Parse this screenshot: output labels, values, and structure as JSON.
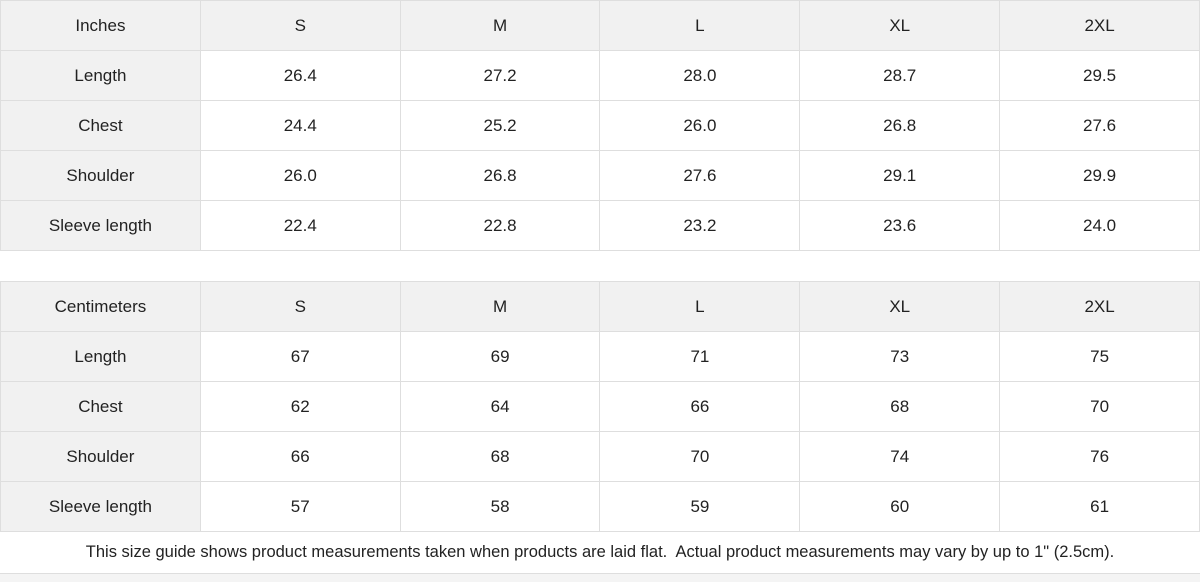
{
  "size_guide": {
    "colors": {
      "header_bg": "#f1f1f1",
      "border": "#dedede",
      "text": "#222222"
    },
    "tables": [
      {
        "unit_label": "Inches",
        "sizes": [
          "S",
          "M",
          "L",
          "XL",
          "2XL"
        ],
        "rows": [
          {
            "label": "Length",
            "values": [
              "26.4",
              "27.2",
              "28.0",
              "28.7",
              "29.5"
            ]
          },
          {
            "label": "Chest",
            "values": [
              "24.4",
              "25.2",
              "26.0",
              "26.8",
              "27.6"
            ]
          },
          {
            "label": "Shoulder",
            "values": [
              "26.0",
              "26.8",
              "27.6",
              "29.1",
              "29.9"
            ]
          },
          {
            "label": "Sleeve length",
            "values": [
              "22.4",
              "22.8",
              "23.2",
              "23.6",
              "24.0"
            ]
          }
        ]
      },
      {
        "unit_label": "Centimeters",
        "sizes": [
          "S",
          "M",
          "L",
          "XL",
          "2XL"
        ],
        "rows": [
          {
            "label": "Length",
            "values": [
              "67",
              "69",
              "71",
              "73",
              "75"
            ]
          },
          {
            "label": "Chest",
            "values": [
              "62",
              "64",
              "66",
              "68",
              "70"
            ]
          },
          {
            "label": "Shoulder",
            "values": [
              "66",
              "68",
              "70",
              "74",
              "76"
            ]
          },
          {
            "label": "Sleeve length",
            "values": [
              "57",
              "58",
              "59",
              "60",
              "61"
            ]
          }
        ]
      }
    ],
    "footnote": "This size guide shows product measurements taken when products are laid flat.  Actual product measurements may vary by up to 1\" (2.5cm)."
  }
}
